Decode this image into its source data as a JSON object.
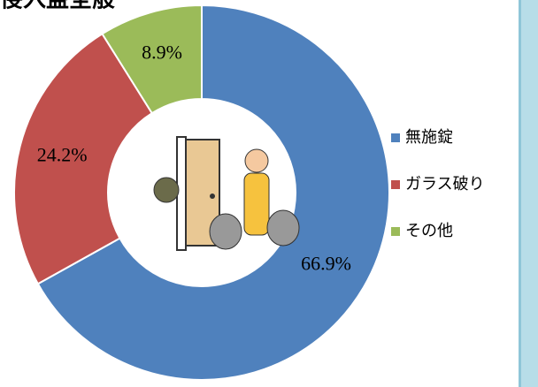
{
  "chart_data": {
    "type": "donut",
    "title": "侵入盗全般",
    "categories": [
      "無施錠",
      "ガラス破り",
      "その他"
    ],
    "values": [
      66.9,
      24.2,
      8.9
    ],
    "value_labels": [
      "66.9%",
      "24.2%",
      "8.9%"
    ],
    "colors": [
      "#4f81bd",
      "#c0504d",
      "#9bbb59"
    ],
    "legend": "right"
  }
}
